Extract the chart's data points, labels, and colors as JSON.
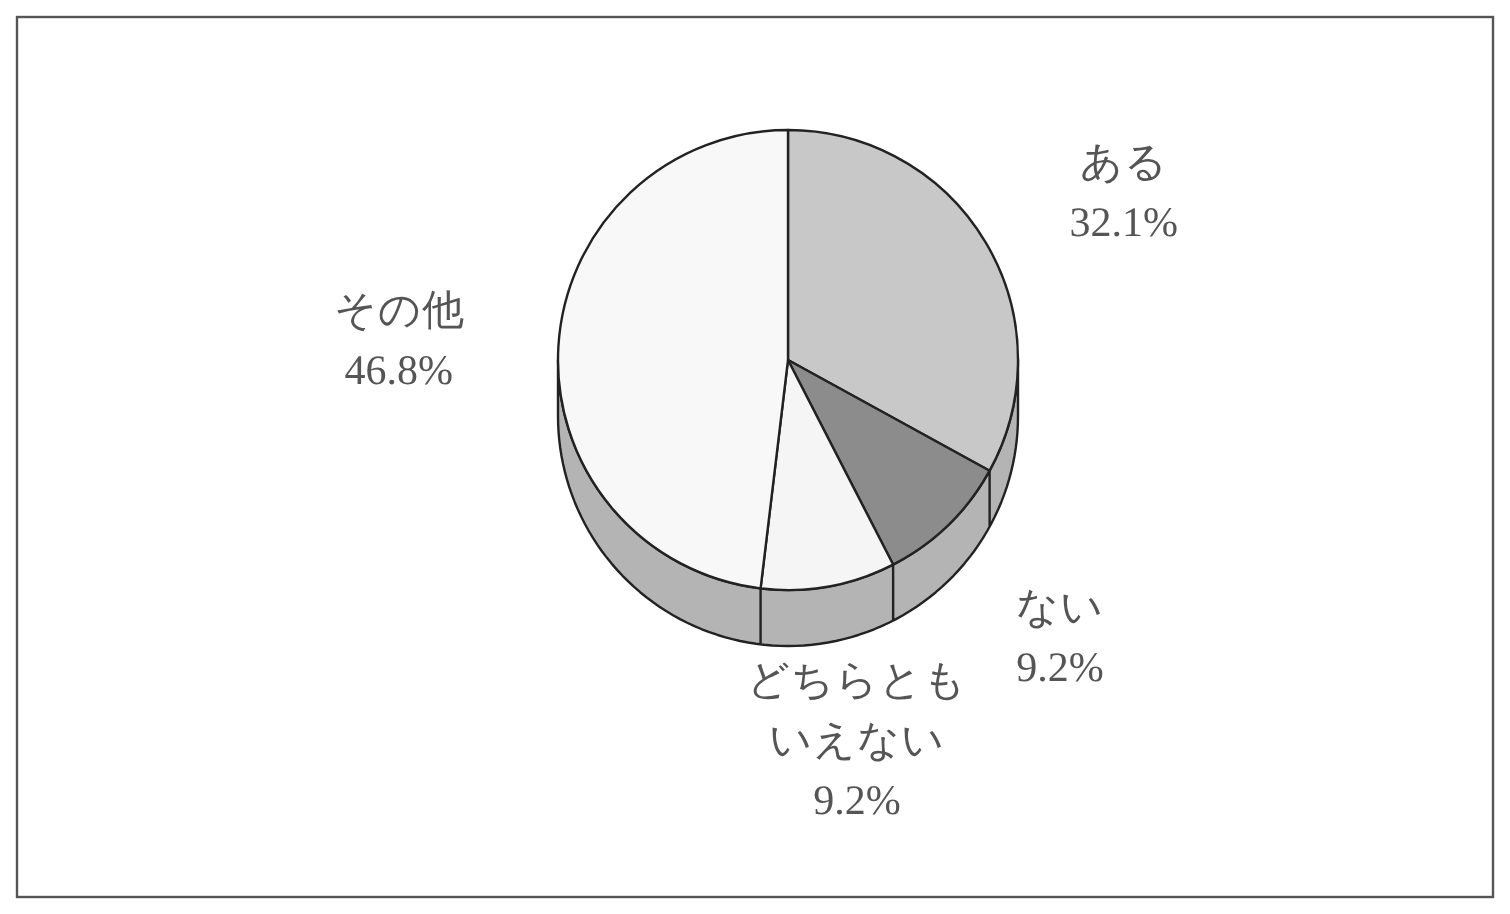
{
  "chart_data": {
    "type": "pie",
    "categories": [
      "ある",
      "ない",
      "どちらともいえない",
      "その他"
    ],
    "values": [
      32.1,
      9.2,
      9.2,
      46.8
    ],
    "colors": [
      "#c8c8c8",
      "#8c8c8c",
      "#f5f5f5",
      "#f8f8f8"
    ],
    "value_labels": [
      "32.1%",
      "9.2%",
      "9.2%",
      "46.8%"
    ]
  }
}
